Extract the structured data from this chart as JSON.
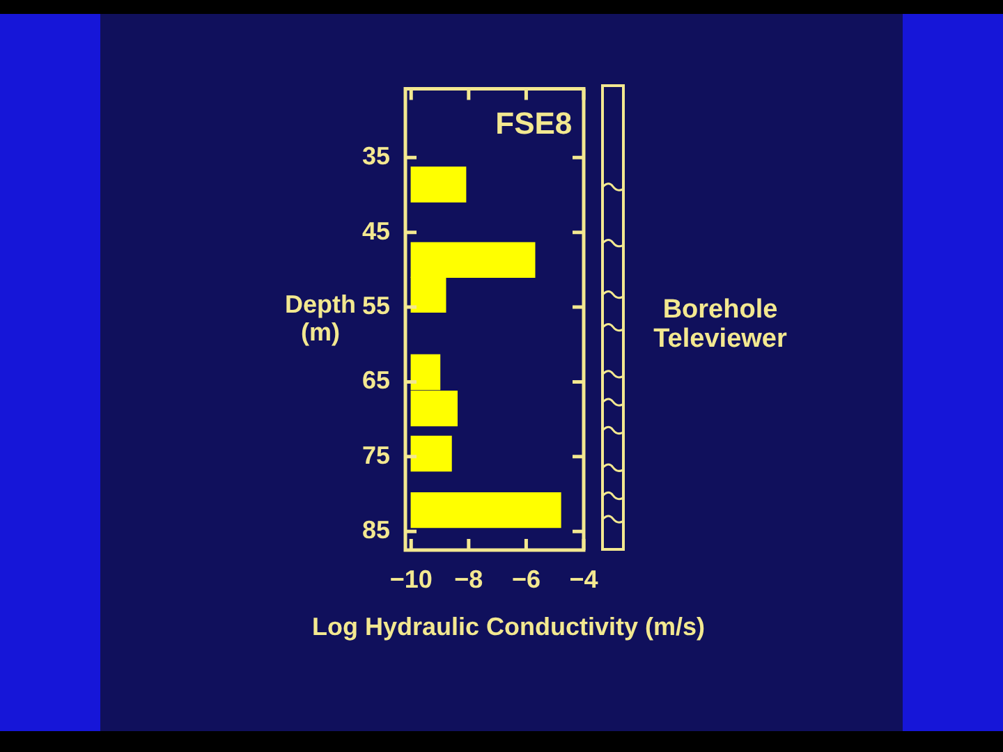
{
  "chart_data": {
    "type": "bar",
    "orientation": "horizontal",
    "title": "FSE8",
    "xlabel": "Log Hydraulic Conductivity (m/s)",
    "ylabel": "Depth\n(m)",
    "x": [
      38.6,
      48.7,
      53.35,
      63.7,
      68.55,
      74.6,
      82.15
    ],
    "base": [
      -10,
      -10,
      -10,
      -10,
      -10,
      -10,
      -10
    ],
    "values": [
      1.9,
      4.3,
      1.2,
      1.0,
      1.6,
      1.4,
      5.2
    ],
    "color": "#ffff00",
    "xlim": [
      -10.2,
      -4
    ],
    "xticks": [
      -10,
      -8,
      -6,
      -4
    ],
    "ylim": [
      87.5,
      25.8
    ],
    "yticks": [
      35,
      45,
      55,
      65,
      75,
      85
    ],
    "annotations": [
      "Borehole\nTeleviewer"
    ]
  }
}
